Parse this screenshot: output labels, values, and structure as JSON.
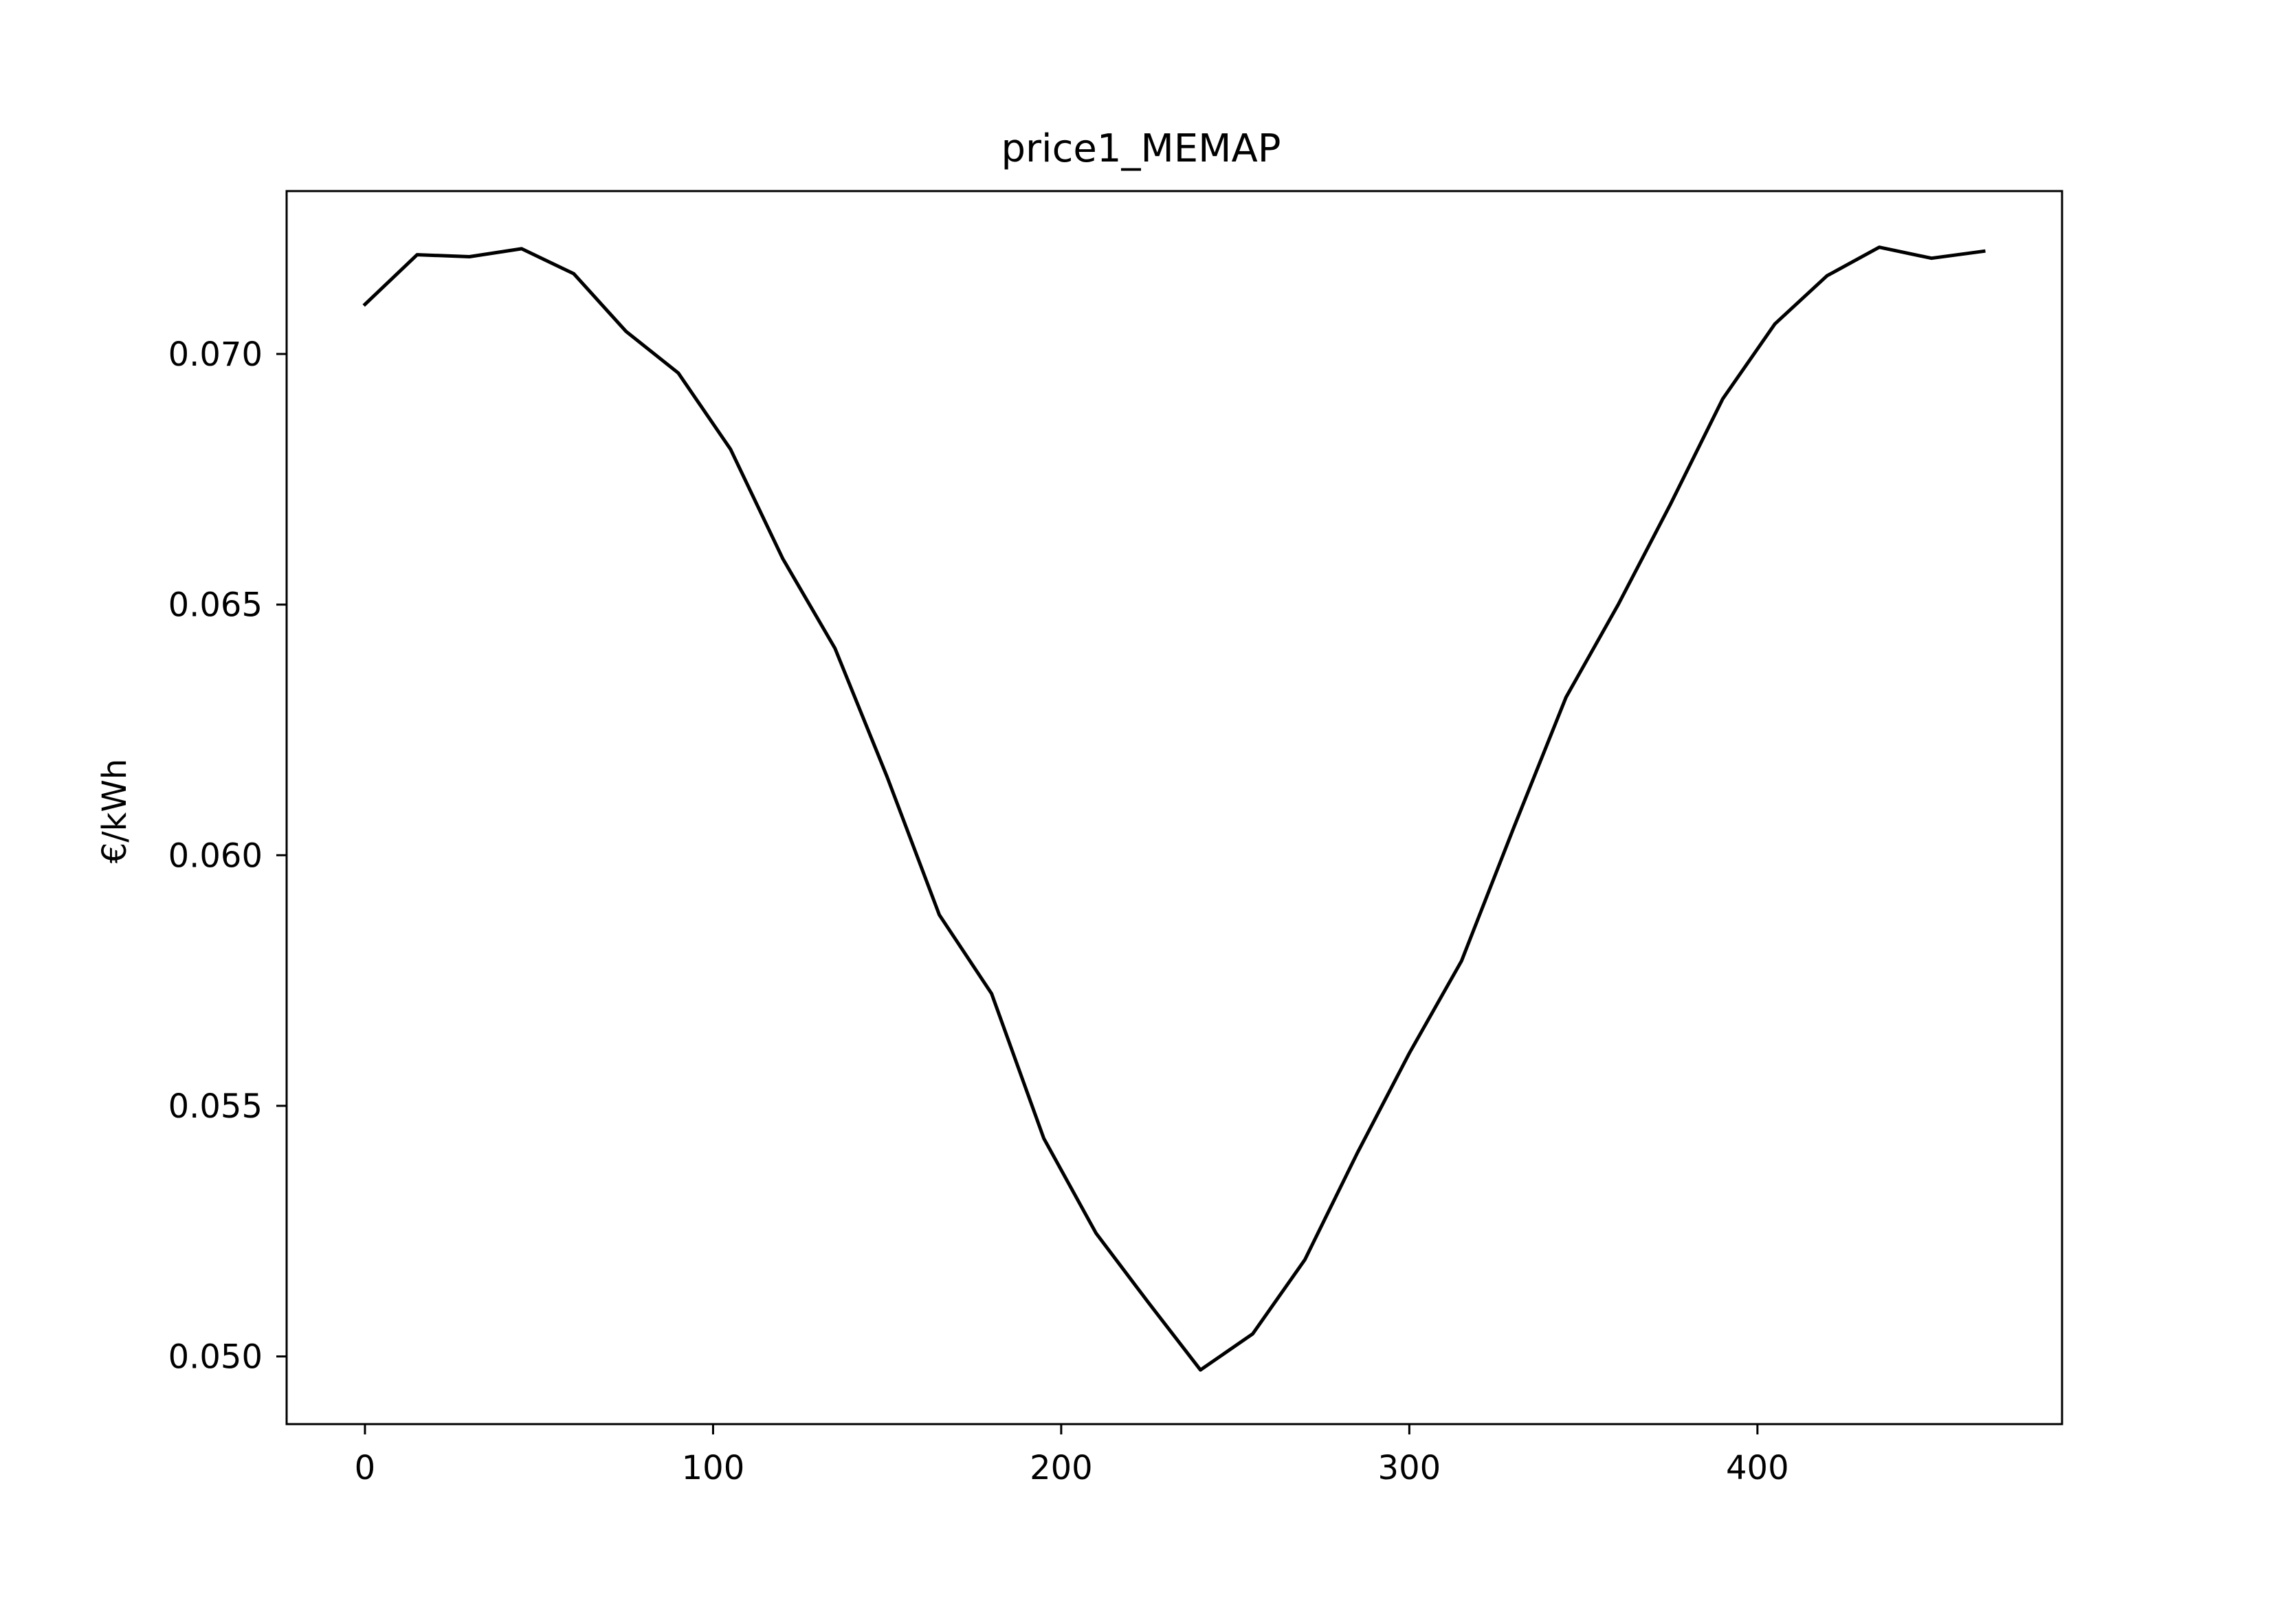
{
  "chart_data": {
    "type": "line",
    "title": "price1_MEMAP",
    "xlabel": "",
    "ylabel": "€/kWh",
    "xlim": [
      -22.5,
      487.5
    ],
    "ylim": [
      0.04865,
      0.07325
    ],
    "x_ticks": [
      0,
      100,
      200,
      300,
      400
    ],
    "y_ticks": [
      0.05,
      0.055,
      0.06,
      0.065,
      0.07
    ],
    "grid": false,
    "line_color": "#000000",
    "series": [
      {
        "x": [
          0,
          15,
          30,
          45,
          60,
          75,
          90,
          105,
          120,
          135,
          150,
          165,
          180,
          195,
          210,
          225,
          240,
          255,
          270,
          285,
          300,
          315,
          330,
          345,
          360,
          375,
          390,
          405,
          420,
          435,
          450,
          465
        ],
        "values": [
          0.07099,
          0.07198,
          0.07194,
          0.0721,
          0.0716,
          0.07045,
          0.06962,
          0.0681,
          0.06592,
          0.06413,
          0.06156,
          0.05881,
          0.05724,
          0.05435,
          0.05246,
          0.05108,
          0.04973,
          0.05045,
          0.05193,
          0.05405,
          0.05605,
          0.05789,
          0.06055,
          0.06315,
          0.065,
          0.067,
          0.0691,
          0.0706,
          0.07156,
          0.07213,
          0.07191,
          0.07205
        ]
      }
    ]
  }
}
